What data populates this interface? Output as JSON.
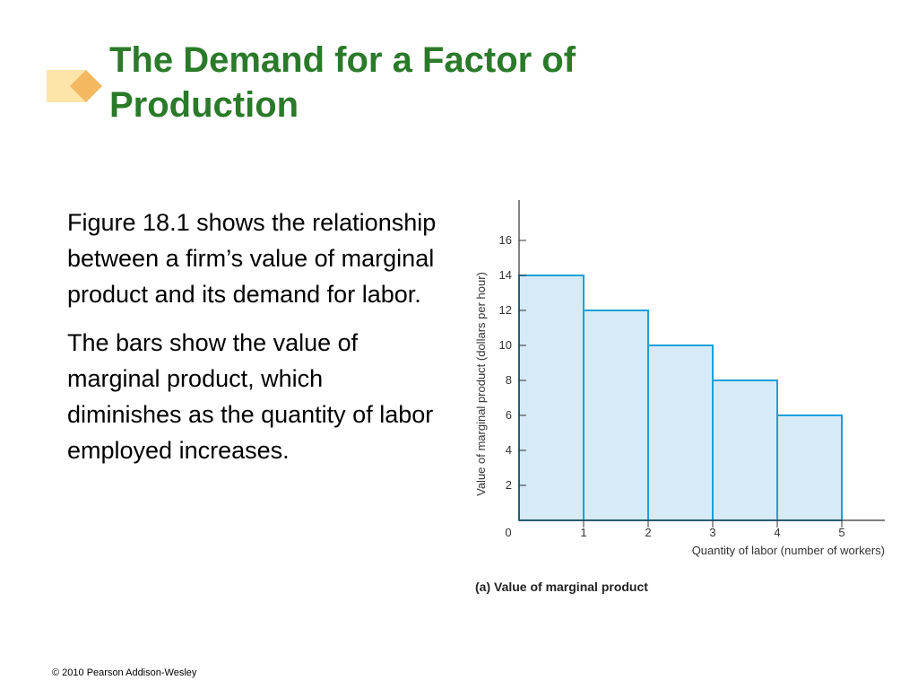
{
  "slide": {
    "title_line1": "The Demand for a Factor of",
    "title_line2": "Production",
    "paragraph1": "Figure 18.1 shows the relationship between a firm’s value of marginal product and its demand for labor.",
    "paragraph2": "The bars show the value of marginal product, which diminishes as the quantity of labor employed increases.",
    "footer": "© 2010 Pearson Addison-Wesley"
  },
  "colors": {
    "title": "#2a7a2a",
    "bar_fill": "#d6eaf8",
    "bar_stroke": "#1aa0d8",
    "deco_light": "#fde4a8",
    "deco_dark": "#f4b860"
  },
  "chart_data": {
    "type": "bar",
    "title": "(a) Value of marginal product",
    "xlabel": "Quantity of labor (number of workers)",
    "ylabel": "Value of marginal product (dollars per hour)",
    "x_ticks": [
      0,
      1,
      2,
      3,
      4,
      5
    ],
    "y_ticks": [
      2,
      4,
      6,
      8,
      10,
      12,
      14,
      16
    ],
    "xlim": [
      0,
      5.7
    ],
    "ylim": [
      0,
      18
    ],
    "bars": [
      {
        "from": 0,
        "to": 1,
        "value": 14
      },
      {
        "from": 1,
        "to": 2,
        "value": 12
      },
      {
        "from": 2,
        "to": 3,
        "value": 10
      },
      {
        "from": 3,
        "to": 4,
        "value": 8
      },
      {
        "from": 4,
        "to": 5,
        "value": 6
      }
    ],
    "grid": false
  }
}
